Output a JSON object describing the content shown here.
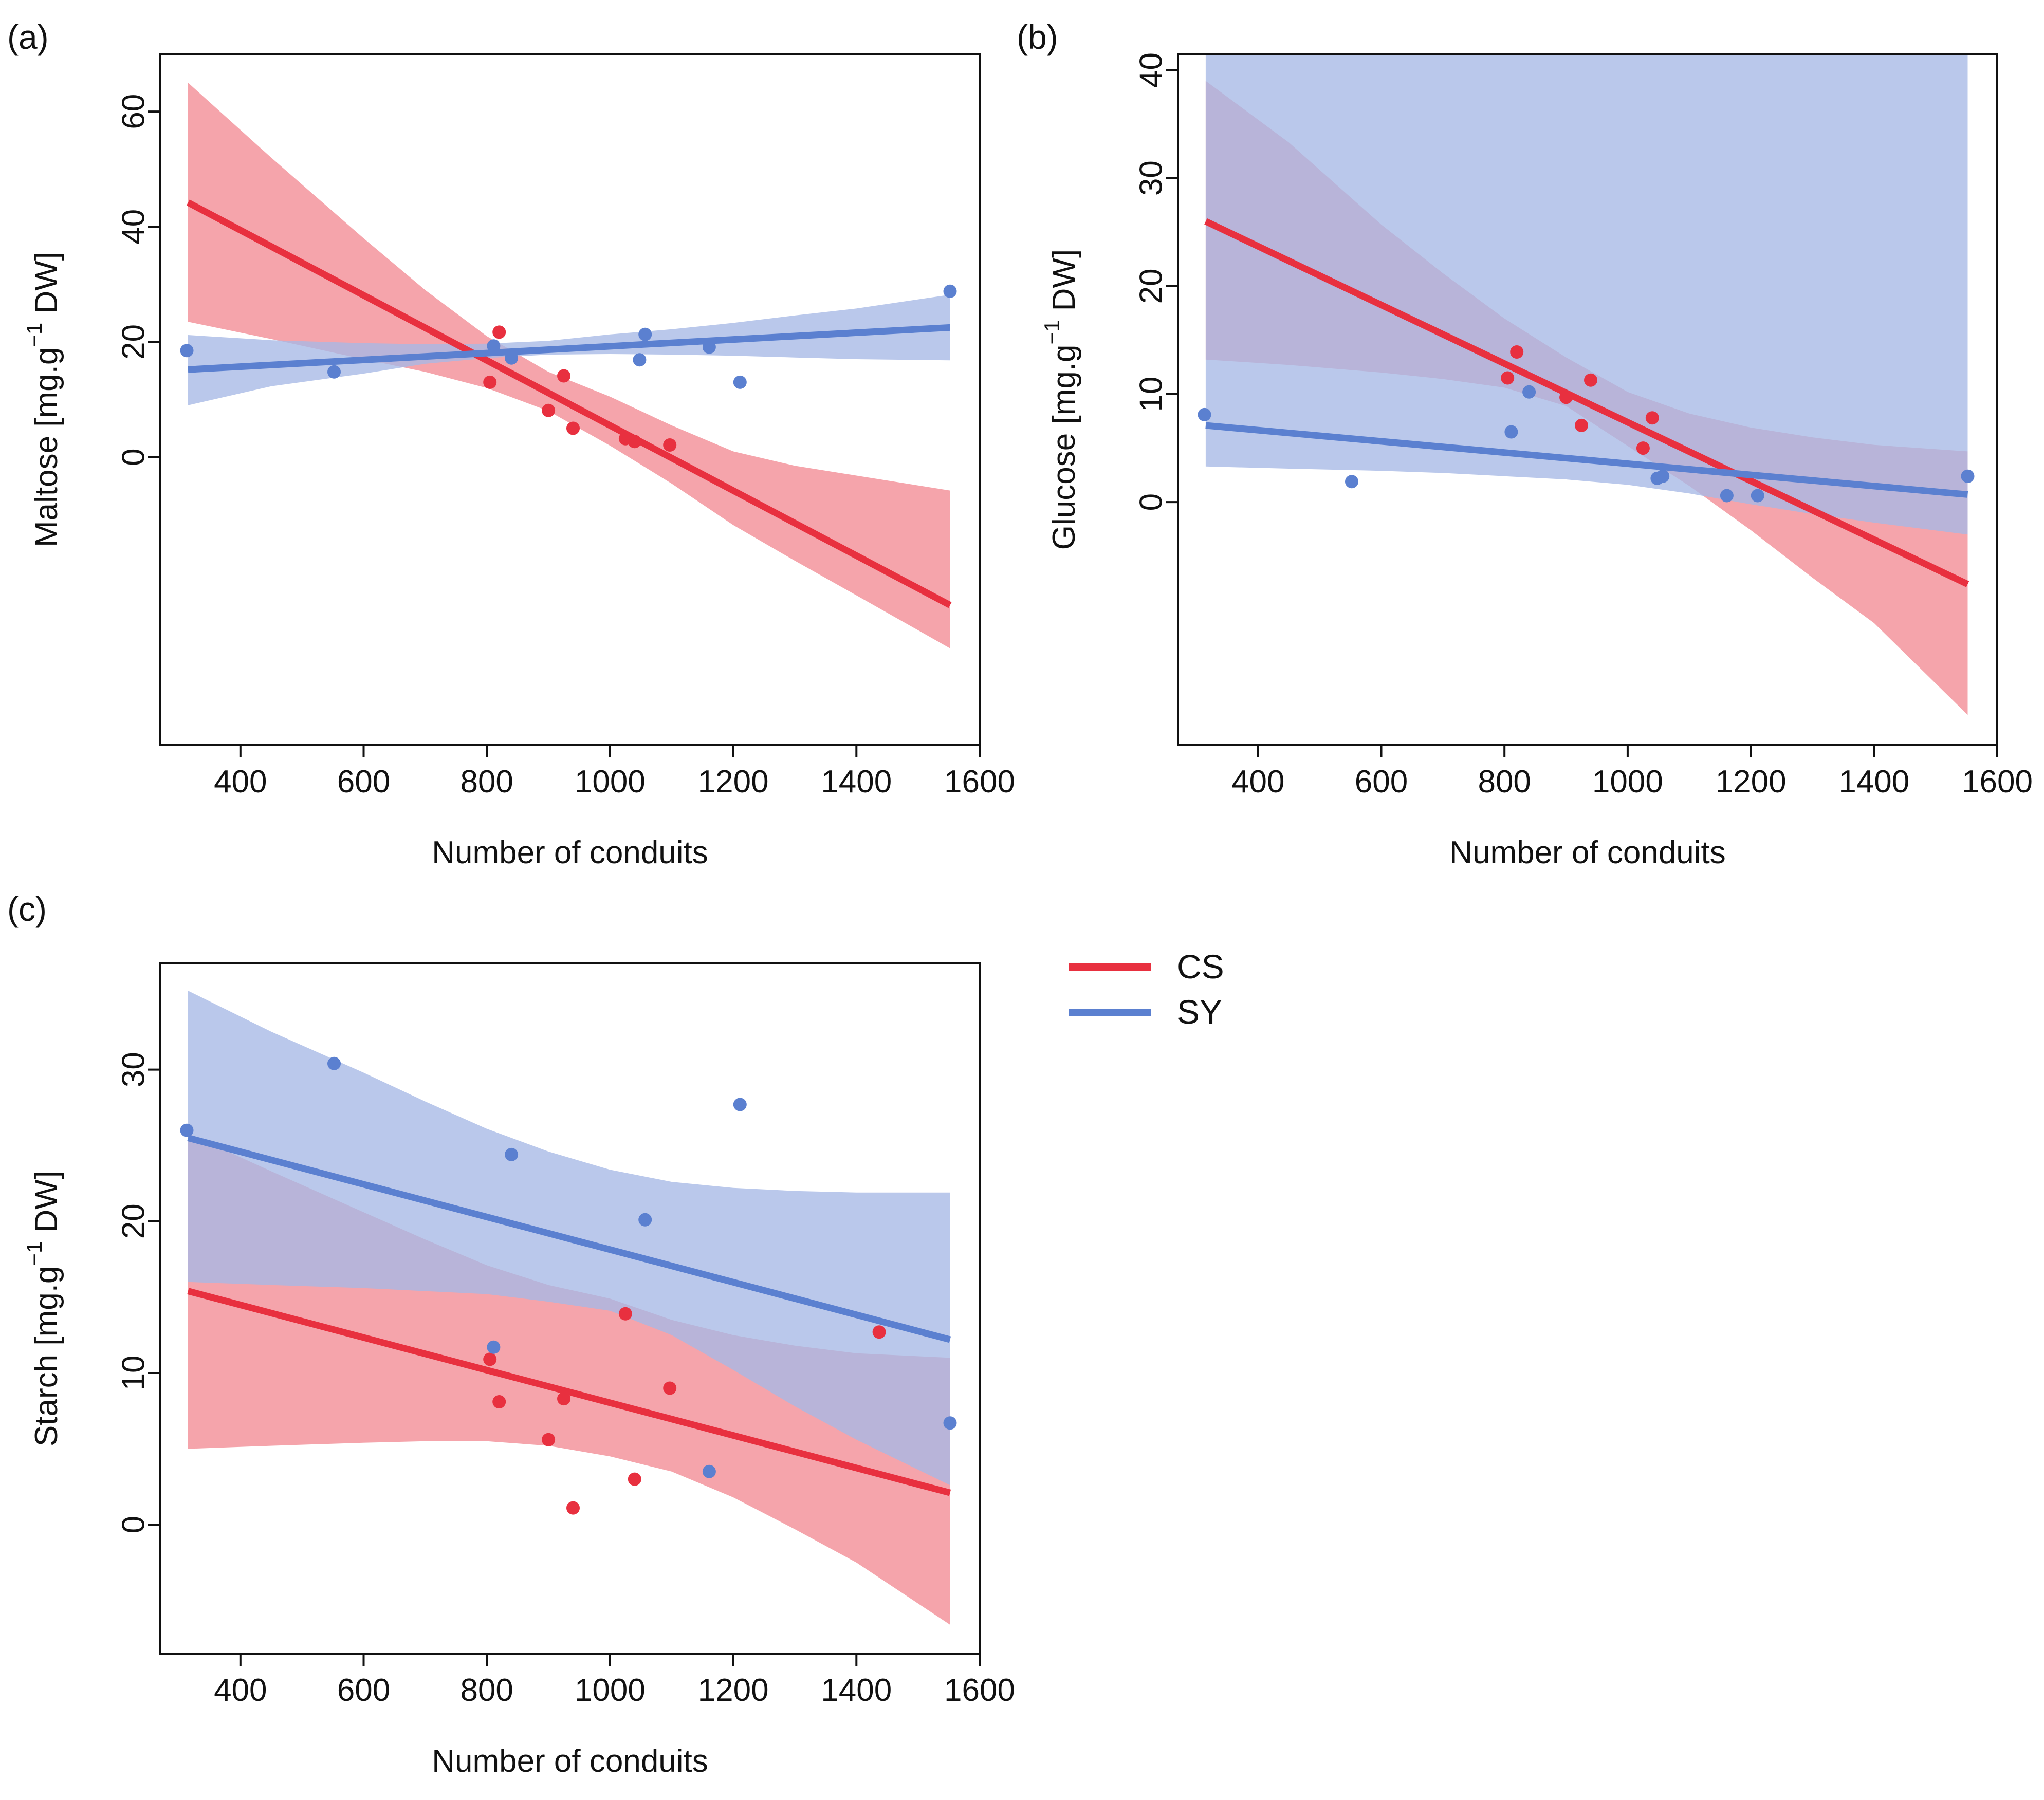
{
  "colors": {
    "cs": "#E8303F",
    "sy": "#5B80D0",
    "cs_band": "#F28A94",
    "sy_band": "#A6B9E6"
  },
  "legend": {
    "items": [
      {
        "key": "cs",
        "label": "CS"
      },
      {
        "key": "sy",
        "label": "SY"
      }
    ]
  },
  "chart_data": [
    {
      "panel": "(a)",
      "type": "scatter",
      "xlabel": "Number of conduits",
      "ylabel_main": "Maltose [mg.g",
      "ylabel_sup": "−1",
      "ylabel_tail": " DW]",
      "xlim": [
        270,
        1600
      ],
      "ylim": [
        -50,
        70
      ],
      "xticks": [
        400,
        600,
        800,
        1000,
        1200,
        1400,
        1600
      ],
      "yticks": [
        0,
        20,
        40,
        60
      ],
      "series": [
        {
          "name": "CS",
          "key": "cs",
          "line": {
            "x": [
              315,
              1552
            ],
            "y": [
              44.2,
              -25.7
            ]
          },
          "band": {
            "x": [
              315,
              450,
              600,
              700,
              800,
              900,
              1000,
              1100,
              1200,
              1300,
              1400,
              1552
            ],
            "lower": [
              23.5,
              20.5,
              17,
              14.8,
              12,
              8,
              2,
              -4.6,
              -11.8,
              -18,
              -24,
              -33.2
            ],
            "upper": [
              65,
              52,
              38,
              29,
              21,
              14.8,
              10.5,
              5.5,
              1,
              -1.5,
              -3.2,
              -5.8
            ]
          },
          "points": [
            {
              "x": 805,
              "y": 13
            },
            {
              "x": 820,
              "y": 21.7
            },
            {
              "x": 900,
              "y": 8.1
            },
            {
              "x": 925,
              "y": 14.1
            },
            {
              "x": 940,
              "y": 5
            },
            {
              "x": 1025,
              "y": 3.2
            },
            {
              "x": 1040,
              "y": 2.7
            },
            {
              "x": 1097,
              "y": 2.1
            }
          ]
        },
        {
          "name": "SY",
          "key": "sy",
          "line": {
            "x": [
              315,
              1552
            ],
            "y": [
              15.2,
              22.5
            ]
          },
          "band": {
            "x": [
              315,
              450,
              600,
              700,
              800,
              900,
              1000,
              1100,
              1200,
              1300,
              1400,
              1552
            ],
            "lower": [
              9,
              12.3,
              14.5,
              16.2,
              17.2,
              17.8,
              17.9,
              17.8,
              17.6,
              17.3,
              17,
              16.8
            ],
            "upper": [
              21.2,
              20.3,
              19.8,
              19.6,
              19.7,
              20.2,
              21.3,
              22.2,
              23.3,
              24.6,
              25.8,
              28.2
            ]
          },
          "points": [
            {
              "x": 313,
              "y": 18.5
            },
            {
              "x": 552,
              "y": 14.8
            },
            {
              "x": 811,
              "y": 19.3
            },
            {
              "x": 840,
              "y": 17.2
            },
            {
              "x": 1048,
              "y": 16.9
            },
            {
              "x": 1057,
              "y": 21.3
            },
            {
              "x": 1161,
              "y": 19.1
            },
            {
              "x": 1211,
              "y": 13
            },
            {
              "x": 1552,
              "y": 28.8
            }
          ]
        }
      ]
    },
    {
      "panel": "(b)",
      "type": "scatter",
      "xlabel": "Number of conduits",
      "ylabel_main": "Glucose [mg.g",
      "ylabel_sup": "−1",
      "ylabel_tail": " DW]",
      "xlim": [
        270,
        1600
      ],
      "ylim": [
        -22.5,
        41.5
      ],
      "xticks": [
        400,
        600,
        800,
        1000,
        1200,
        1400,
        1600
      ],
      "yticks": [
        0,
        10,
        20,
        30,
        40
      ],
      "series": [
        {
          "name": "CS",
          "key": "cs",
          "line": {
            "x": [
              315,
              1552
            ],
            "y": [
              26,
              -7.6
            ]
          },
          "band": {
            "x": [
              315,
              450,
              600,
              700,
              800,
              900,
              1000,
              1100,
              1200,
              1300,
              1400,
              1552
            ],
            "lower": [
              13.2,
              12.7,
              12,
              11.4,
              10.6,
              8.9,
              5.2,
              1.5,
              -2.6,
              -7,
              -11.2,
              -19.7
            ],
            "upper": [
              39,
              33.3,
              25.7,
              21.2,
              17,
              13.4,
              10.2,
              8.2,
              6.9,
              6,
              5.3,
              4.7
            ]
          },
          "points": [
            {
              "x": 805,
              "y": 11.5
            },
            {
              "x": 820,
              "y": 13.9
            },
            {
              "x": 900,
              "y": 9.7
            },
            {
              "x": 925,
              "y": 7.1
            },
            {
              "x": 940,
              "y": 11.3
            },
            {
              "x": 1025,
              "y": 5
            },
            {
              "x": 1040,
              "y": 7.8
            }
          ]
        },
        {
          "name": "SY",
          "key": "sy",
          "line": {
            "x": [
              315,
              1552
            ],
            "y": [
              7.1,
              0.7
            ]
          },
          "band": {
            "x": [
              315,
              450,
              600,
              700,
              800,
              900,
              1000,
              1100,
              1200,
              1300,
              1400,
              1552
            ],
            "lower": [
              3.3,
              3.1,
              2.9,
              2.7,
              2.4,
              2.1,
              1.6,
              0.8,
              -0.2,
              -1.1,
              -1.9,
              -3
            ]
          },
          "points": [
            {
              "x": 313,
              "y": 8.1
            },
            {
              "x": 552,
              "y": 1.9
            },
            {
              "x": 811,
              "y": 6.5
            },
            {
              "x": 840,
              "y": 10.2
            },
            {
              "x": 1048,
              "y": 2.2
            },
            {
              "x": 1057,
              "y": 2.4
            },
            {
              "x": 1161,
              "y": 0.6
            },
            {
              "x": 1211,
              "y": 0.6
            },
            {
              "x": 1552,
              "y": 2.4
            }
          ]
        }
      ]
    },
    {
      "panel": "(c)",
      "type": "scatter",
      "xlabel": "Number of conduits",
      "ylabel_main": "Starch [mg.g",
      "ylabel_sup": "−1",
      "ylabel_tail": " DW]",
      "xlim": [
        270,
        1600
      ],
      "ylim": [
        -8.5,
        37
      ],
      "xticks": [
        400,
        600,
        800,
        1000,
        1200,
        1400,
        1600
      ],
      "yticks": [
        0,
        10,
        20,
        30
      ],
      "series": [
        {
          "name": "CS",
          "key": "cs",
          "line": {
            "x": [
              315,
              1552
            ],
            "y": [
              15.4,
              2.1
            ]
          },
          "band": {
            "x": [
              315,
              450,
              600,
              700,
              800,
              900,
              1000,
              1100,
              1200,
              1300,
              1400,
              1552
            ],
            "lower": [
              5,
              5.2,
              5.4,
              5.5,
              5.5,
              5.2,
              4.5,
              3.5,
              1.8,
              -0.3,
              -2.5,
              -6.6
            ],
            "upper": [
              25.8,
              23.3,
              20.6,
              18.8,
              17.1,
              15.8,
              14.9,
              13.5,
              12.5,
              11.8,
              11.3,
              11
            ]
          },
          "points": [
            {
              "x": 805,
              "y": 10.9
            },
            {
              "x": 820,
              "y": 8.1
            },
            {
              "x": 900,
              "y": 5.6
            },
            {
              "x": 925,
              "y": 8.3
            },
            {
              "x": 940,
              "y": 1.1
            },
            {
              "x": 1025,
              "y": 13.9
            },
            {
              "x": 1040,
              "y": 3
            },
            {
              "x": 1097,
              "y": 9
            },
            {
              "x": 1437,
              "y": 12.7
            }
          ]
        },
        {
          "name": "SY",
          "key": "sy",
          "line": {
            "x": [
              315,
              1552
            ],
            "y": [
              25.5,
              12.2
            ]
          },
          "band": {
            "x": [
              315,
              450,
              600,
              700,
              800,
              900,
              1000,
              1100,
              1200,
              1300,
              1400,
              1552
            ],
            "lower": [
              16,
              15.8,
              15.6,
              15.4,
              15.2,
              14.7,
              14.1,
              12.5,
              10.2,
              7.8,
              5.6,
              2.6
            ],
            "upper": [
              35.2,
              32.5,
              29.8,
              27.9,
              26.1,
              24.6,
              23.4,
              22.6,
              22.2,
              22,
              21.9,
              21.9
            ]
          },
          "points": [
            {
              "x": 313,
              "y": 26
            },
            {
              "x": 552,
              "y": 30.4
            },
            {
              "x": 811,
              "y": 11.7
            },
            {
              "x": 840,
              "y": 24.4
            },
            {
              "x": 1057,
              "y": 20.1
            },
            {
              "x": 1161,
              "y": 3.5
            },
            {
              "x": 1211,
              "y": 27.7
            },
            {
              "x": 1552,
              "y": 6.7
            }
          ]
        }
      ]
    }
  ]
}
